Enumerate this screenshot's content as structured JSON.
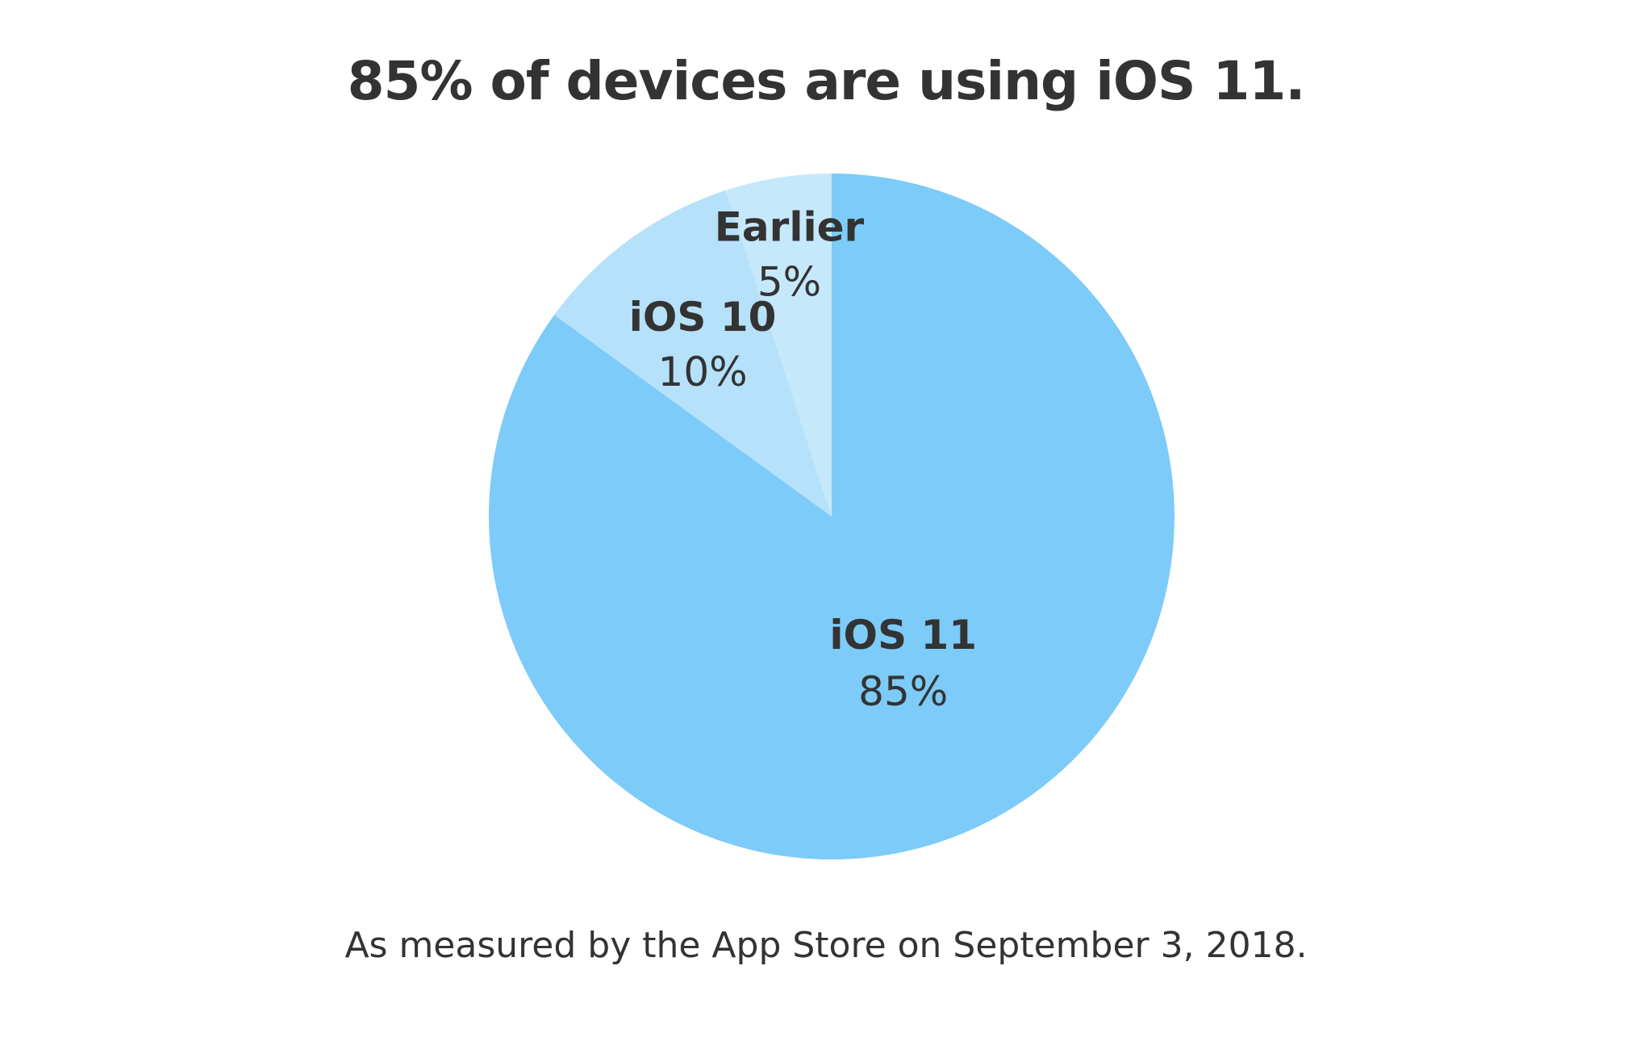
{
  "chart_data": {
    "type": "pie",
    "title": "85% of devices are using iOS 11.",
    "footnote": "As measured by the App Store on September 3, 2018.",
    "slices": [
      {
        "label": "iOS 11",
        "value": 85,
        "value_label": "85%",
        "color": "#7dcbf8"
      },
      {
        "label": "iOS 10",
        "value": 10,
        "value_label": "10%",
        "color": "#b5e1fa"
      },
      {
        "label": "Earlier",
        "value": 5,
        "value_label": "5%",
        "color": "#c6e8fb"
      }
    ],
    "start_angle": "12 o'clock",
    "direction": "clockwise",
    "legend": "none",
    "labels": "inside slices"
  }
}
